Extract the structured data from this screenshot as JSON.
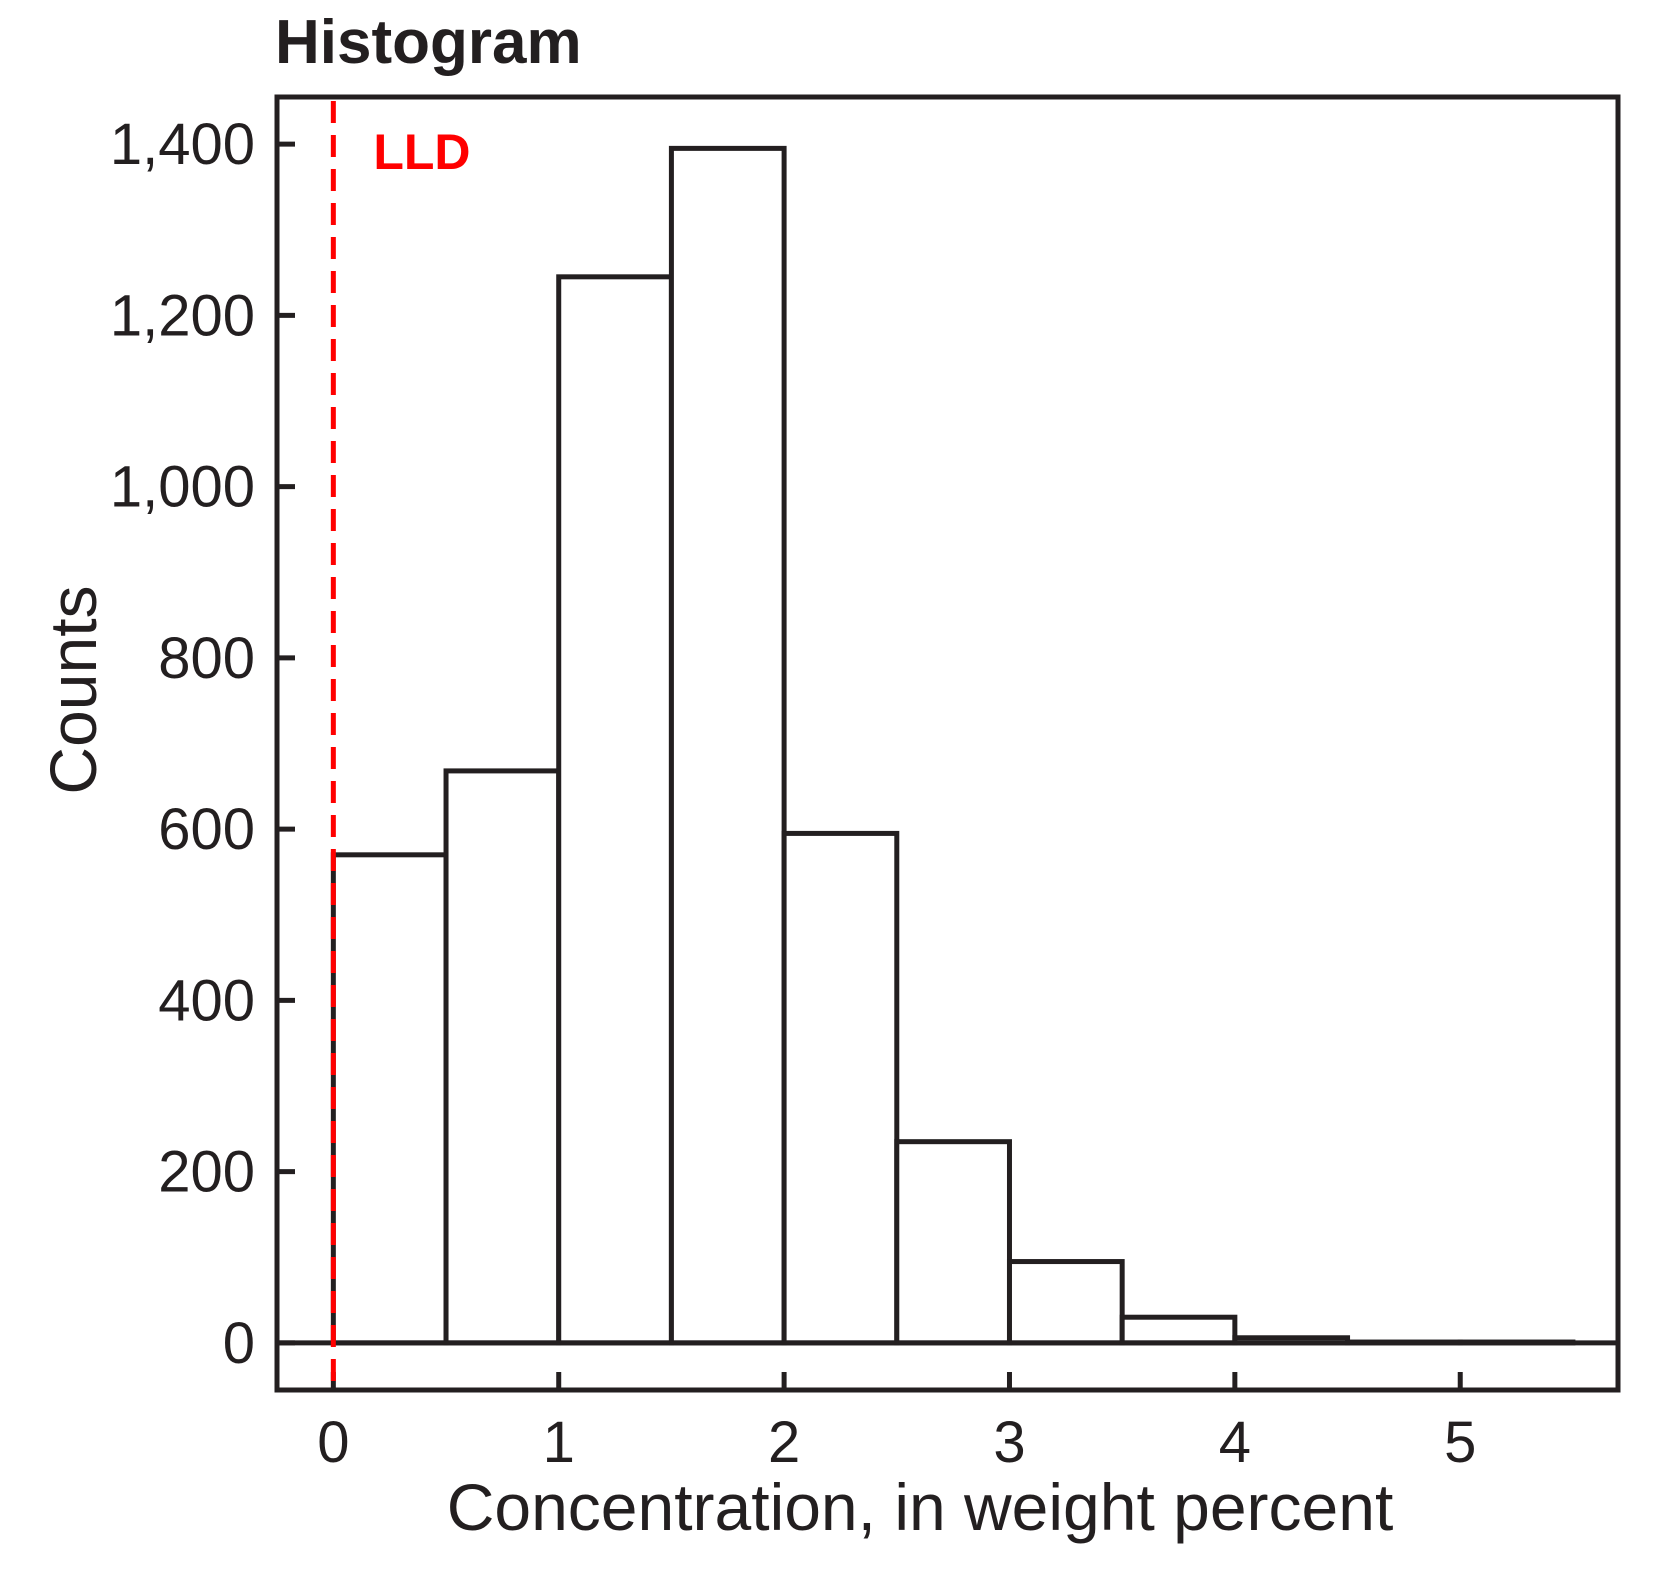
{
  "chart_data": {
    "type": "bar",
    "title": "Histogram",
    "xlabel": "Concentration, in weight percent",
    "ylabel": "Counts",
    "xlim": [
      -0.25,
      5.7
    ],
    "ylim": [
      -55,
      1455
    ],
    "x_ticks": [
      0,
      1,
      2,
      3,
      4,
      5
    ],
    "x_tick_labels": [
      "0",
      "1",
      "2",
      "3",
      "4",
      "5"
    ],
    "y_ticks": [
      0,
      200,
      400,
      600,
      800,
      1000,
      1200,
      1400
    ],
    "y_tick_labels": [
      "0",
      "200",
      "400",
      "600",
      "800",
      "1,000",
      "1,200",
      "1,400"
    ],
    "bin_width": 0.5,
    "bins": [
      {
        "start": 0.0,
        "end": 0.5,
        "count": 570
      },
      {
        "start": 0.5,
        "end": 1.0,
        "count": 668
      },
      {
        "start": 1.0,
        "end": 1.5,
        "count": 1245
      },
      {
        "start": 1.5,
        "end": 2.0,
        "count": 1395
      },
      {
        "start": 2.0,
        "end": 2.5,
        "count": 595
      },
      {
        "start": 2.5,
        "end": 3.0,
        "count": 235
      },
      {
        "start": 3.0,
        "end": 3.5,
        "count": 95
      },
      {
        "start": 3.5,
        "end": 4.0,
        "count": 30
      },
      {
        "start": 4.0,
        "end": 4.5,
        "count": 6
      },
      {
        "start": 4.5,
        "end": 5.0,
        "count": 1
      },
      {
        "start": 5.0,
        "end": 5.5,
        "count": 1
      }
    ],
    "annotations": [
      {
        "label": "LLD",
        "x": 0,
        "style": "dashed-vertical-line",
        "color": "#ff0000"
      }
    ],
    "grid": false,
    "legend": "none"
  }
}
